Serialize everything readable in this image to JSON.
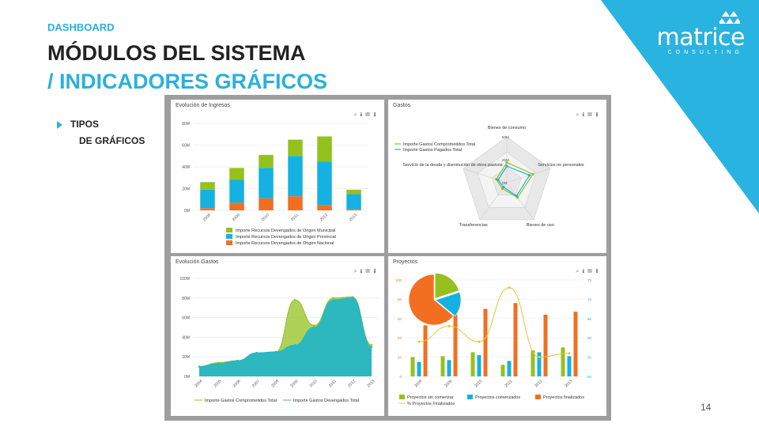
{
  "header": {
    "kicker": "DASHBOARD",
    "title_line1": "MÓDULOS DEL SISTEMA",
    "title_line2": "/ INDICADORES GRÁFICOS"
  },
  "brand": {
    "name": "matrice",
    "tagline": "CONSULTING",
    "color": "#29b3e0"
  },
  "section": {
    "label1": "TIPOS",
    "label2": "DE GRÁFICOS"
  },
  "page_number": "14",
  "toolbar_icons": [
    "search-icon",
    "info-icon",
    "export-icon",
    "download-icon"
  ],
  "chart_data": [
    {
      "type": "bar",
      "title": "Evolución de Ingresos",
      "stacked": true,
      "categories": [
        "2008",
        "2009",
        "2010",
        "2011",
        "2012",
        "2013"
      ],
      "y_ticks": [
        "0M",
        "20M",
        "40M",
        "60M",
        "80M"
      ],
      "ylim": [
        0,
        80
      ],
      "series": [
        {
          "name": "Importe Recursos Devengados de Origen Nacional",
          "color": "#f26f21",
          "values": [
            2,
            7,
            11,
            13,
            5,
            1
          ]
        },
        {
          "name": "Importe Recursos Devengados de Origen Provincial",
          "color": "#15b1e0",
          "values": [
            17,
            21,
            28,
            37,
            40,
            14
          ]
        },
        {
          "name": "Importe Recursos Devengados de Origen Municipal",
          "color": "#95c11f",
          "values": [
            7,
            11,
            12,
            15,
            23,
            4
          ]
        }
      ]
    },
    {
      "type": "radar",
      "title": "Gastos",
      "axes": [
        "Bienes de consumo",
        "Servicios no personales",
        "Bienes de uso",
        "Transferencias",
        "Servicio de la deuda y disminución de otros pasivos"
      ],
      "r_ticks": [
        "0M",
        "25M",
        "50M"
      ],
      "series": [
        {
          "name": "Importe Gastos Comprometidos Total",
          "color": "#95c11f",
          "values": [
            22,
            30,
            20,
            8,
            12
          ]
        },
        {
          "name": "Importe Gastos Pagados Total",
          "color": "#15b1e0",
          "values": [
            18,
            26,
            18,
            6,
            10
          ]
        }
      ]
    },
    {
      "type": "area",
      "title": "Evolución Gastos",
      "categories": [
        "2004",
        "2005",
        "2006",
        "2007",
        "2008",
        "2009",
        "2010",
        "2011",
        "2012",
        "2013"
      ],
      "y_ticks": [
        "0M",
        "20M",
        "40M",
        "60M",
        "80M",
        "100M"
      ],
      "ylim": [
        0,
        100
      ],
      "series": [
        {
          "name": "Importe Gastos Comprometidos Total",
          "color": "#95c11f",
          "values": [
            10,
            14,
            16,
            24,
            25,
            78,
            52,
            80,
            81,
            32
          ]
        },
        {
          "name": "Importe Gastos Devengados Total",
          "color": "#26b6c6",
          "values": [
            10,
            13,
            16,
            24,
            25,
            32,
            50,
            78,
            80,
            30
          ]
        }
      ]
    },
    {
      "type": "bar",
      "title": "Proyectos",
      "categories": [
        "2008",
        "2009",
        "2010",
        "2011",
        "2012",
        "2013"
      ],
      "y_ticks_left": [
        "0",
        "20",
        "40",
        "60",
        "80",
        "100"
      ],
      "y_ticks_right": [
        "50",
        "55",
        "60",
        "65",
        "70",
        "75"
      ],
      "series": [
        {
          "name": "Proyectos sin comenzar",
          "color": "#95c11f",
          "values": [
            20,
            21,
            25,
            12,
            27,
            30
          ]
        },
        {
          "name": "Proyectos comenzados",
          "color": "#15b1e0",
          "values": [
            15,
            17,
            22,
            16,
            25,
            21
          ]
        },
        {
          "name": "Proyectos finalizados",
          "color": "#f26f21",
          "values": [
            53,
            64,
            70,
            76,
            64,
            67
          ]
        },
        {
          "name": "% Proyectos Finalizados",
          "type": "line",
          "axis": "right",
          "color": "#f2c12e",
          "values": [
            59,
            63,
            59,
            73,
            55,
            56
          ]
        }
      ],
      "pie": [
        {
          "label": "Proyectos sin comenzar",
          "color": "#95c11f",
          "value": 20
        },
        {
          "label": "Proyectos comenzados",
          "color": "#15b1e0",
          "value": 16
        },
        {
          "label": "Proyectos finalizados",
          "color": "#f26f21",
          "value": 64
        }
      ]
    }
  ]
}
